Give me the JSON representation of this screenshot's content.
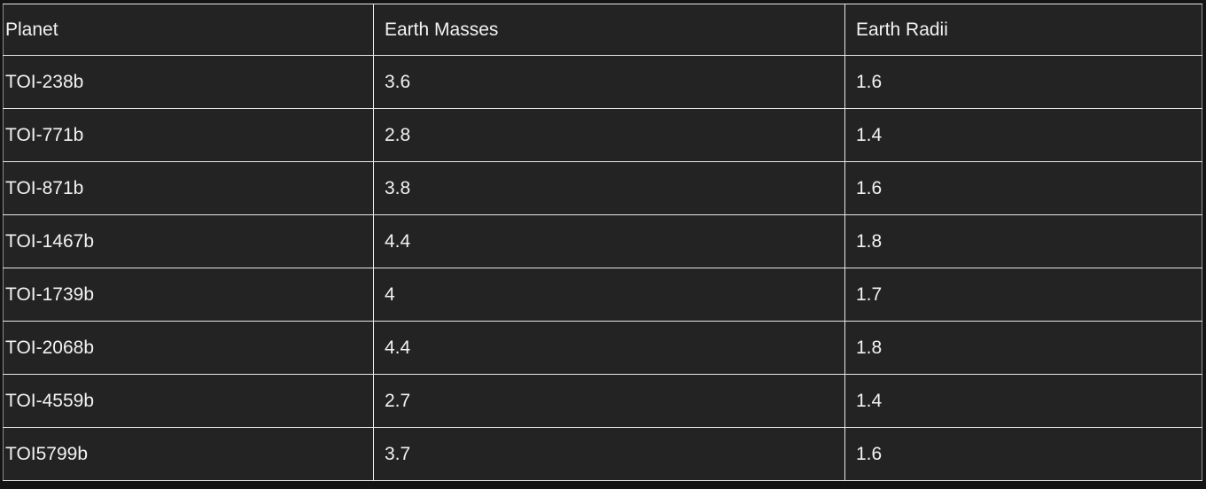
{
  "colors": {
    "page_bg": "#141414",
    "cell_bg": "#232323",
    "border_light": "#e8e8e8",
    "border_outer": "#8c8c8c",
    "text": "#f2f2f2"
  },
  "table": {
    "columns": [
      {
        "key": "planet",
        "label": "Planet"
      },
      {
        "key": "earth_masses",
        "label": "Earth Masses"
      },
      {
        "key": "earth_radii",
        "label": "Earth Radii"
      }
    ],
    "rows": [
      {
        "planet": "TOI-238b",
        "earth_masses": "3.6",
        "earth_radii": "1.6"
      },
      {
        "planet": "TOI-771b",
        "earth_masses": "2.8",
        "earth_radii": "1.4"
      },
      {
        "planet": "TOI-871b",
        "earth_masses": "3.8",
        "earth_radii": "1.6"
      },
      {
        "planet": "TOI-1467b",
        "earth_masses": "4.4",
        "earth_radii": "1.8"
      },
      {
        "planet": "TOI-1739b",
        "earth_masses": "4",
        "earth_radii": "1.7"
      },
      {
        "planet": "TOI-2068b",
        "earth_masses": "4.4",
        "earth_radii": "1.8"
      },
      {
        "planet": "TOI-4559b",
        "earth_masses": "2.7",
        "earth_radii": "1.4"
      },
      {
        "planet": "TOI5799b",
        "earth_masses": "3.7",
        "earth_radii": "1.6"
      }
    ]
  },
  "chart_data": {
    "type": "table",
    "title": "",
    "columns": [
      "Planet",
      "Earth Masses",
      "Earth Radii"
    ],
    "rows": [
      [
        "TOI-238b",
        3.6,
        1.6
      ],
      [
        "TOI-771b",
        2.8,
        1.4
      ],
      [
        "TOI-871b",
        3.8,
        1.6
      ],
      [
        "TOI-1467b",
        4.4,
        1.8
      ],
      [
        "TOI-1739b",
        4,
        1.7
      ],
      [
        "TOI-2068b",
        4.4,
        1.8
      ],
      [
        "TOI-4559b",
        2.7,
        1.4
      ],
      [
        "TOI5799b",
        3.7,
        1.6
      ]
    ]
  }
}
